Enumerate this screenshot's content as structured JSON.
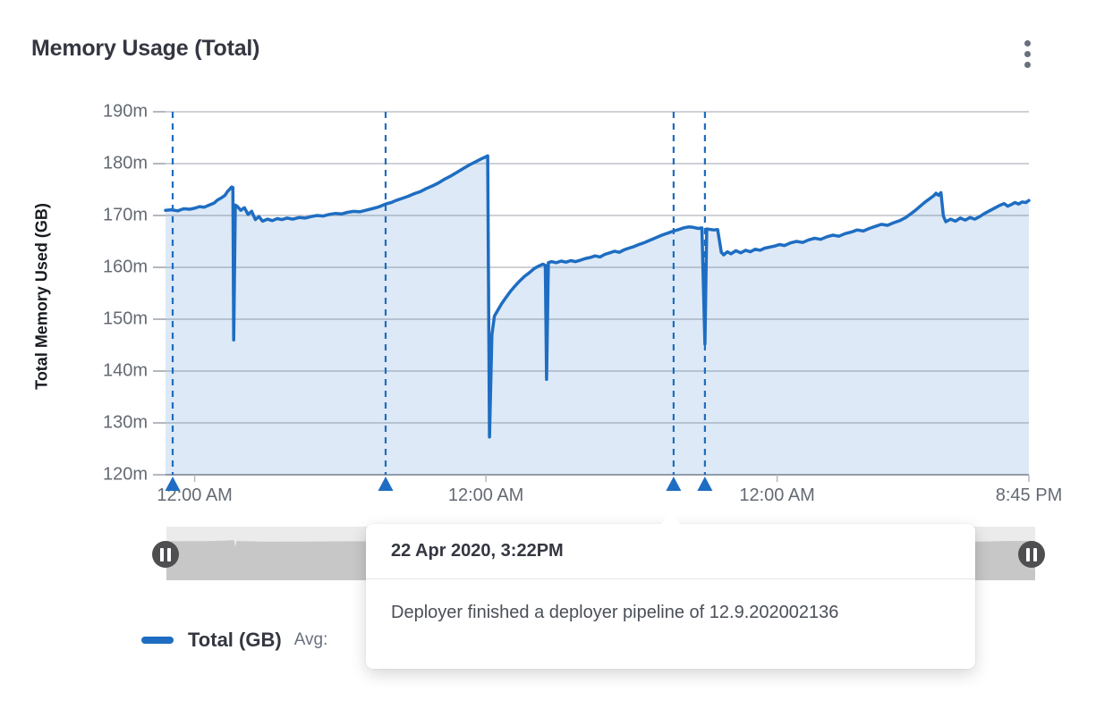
{
  "header": {
    "title": "Memory Usage (Total)",
    "menu_icon": "kebab-vertical-icon"
  },
  "chart_data": {
    "type": "area",
    "title": "Memory Usage (Total)",
    "xlabel": "",
    "ylabel": "Total Memory Used (GB)",
    "x_unit": "hours",
    "xlim": [
      0,
      71.15
    ],
    "ylim": [
      120,
      190
    ],
    "grid": "horizontal",
    "legend_position": "bottom-left",
    "line_color": "#1e6dc2",
    "fill_color": "rgba(30,109,194,0.15)",
    "annotation_color": "#1e6dc2",
    "y_ticks": [
      {
        "value": 190,
        "label": "190m"
      },
      {
        "value": 180,
        "label": "180m"
      },
      {
        "value": 170,
        "label": "170m"
      },
      {
        "value": 160,
        "label": "160m"
      },
      {
        "value": 150,
        "label": "150m"
      },
      {
        "value": 140,
        "label": "140m"
      },
      {
        "value": 130,
        "label": "130m"
      },
      {
        "value": 120,
        "label": "120m"
      }
    ],
    "x_ticks": [
      {
        "t": 2.4,
        "label": "12:00 AM"
      },
      {
        "t": 26.4,
        "label": "12:00 AM"
      },
      {
        "t": 50.4,
        "label": "12:00 AM"
      },
      {
        "t": 71.15,
        "label": "8:45 PM"
      }
    ],
    "annotations": [
      {
        "t": 0.59
      },
      {
        "t": 18.14
      },
      {
        "t": 41.87,
        "selected": true,
        "timestamp": "22 Apr 2020, 3:22PM",
        "message": "Deployer finished a deployer pipeline of 12.9.202002136"
      },
      {
        "t": 44.45
      }
    ],
    "series": [
      {
        "name": "Total (GB)",
        "points": [
          [
            0,
            171.0
          ],
          [
            0.5,
            171.1
          ],
          [
            1,
            170.9
          ],
          [
            1.5,
            171.3
          ],
          [
            2,
            171.2
          ],
          [
            2.4,
            171.4
          ],
          [
            2.8,
            171.7
          ],
          [
            3.2,
            171.6
          ],
          [
            3.6,
            172.0
          ],
          [
            4,
            172.4
          ],
          [
            4.3,
            173.0
          ],
          [
            4.6,
            173.4
          ],
          [
            4.9,
            173.9
          ],
          [
            5.1,
            174.6
          ],
          [
            5.3,
            175.1
          ],
          [
            5.45,
            175.5
          ],
          [
            5.55,
            175.4
          ],
          [
            5.62,
            146.0
          ],
          [
            5.75,
            172.0
          ],
          [
            5.9,
            171.8
          ],
          [
            6.2,
            171.0
          ],
          [
            6.5,
            171.5
          ],
          [
            6.8,
            170.2
          ],
          [
            7.1,
            170.8
          ],
          [
            7.4,
            169.2
          ],
          [
            7.7,
            169.8
          ],
          [
            8,
            168.9
          ],
          [
            8.4,
            169.3
          ],
          [
            8.8,
            169.0
          ],
          [
            9.2,
            169.4
          ],
          [
            9.6,
            169.2
          ],
          [
            10,
            169.5
          ],
          [
            10.5,
            169.3
          ],
          [
            11,
            169.6
          ],
          [
            11.5,
            169.5
          ],
          [
            12,
            169.8
          ],
          [
            12.5,
            170.0
          ],
          [
            13,
            169.9
          ],
          [
            13.5,
            170.2
          ],
          [
            14,
            170.4
          ],
          [
            14.5,
            170.3
          ],
          [
            15,
            170.6
          ],
          [
            15.5,
            170.8
          ],
          [
            16,
            170.7
          ],
          [
            16.5,
            171.0
          ],
          [
            17,
            171.3
          ],
          [
            17.5,
            171.6
          ],
          [
            18.14,
            172.2
          ],
          [
            18.6,
            172.5
          ],
          [
            19,
            172.9
          ],
          [
            19.5,
            173.3
          ],
          [
            20,
            173.7
          ],
          [
            20.5,
            174.2
          ],
          [
            21,
            174.6
          ],
          [
            21.5,
            175.2
          ],
          [
            22,
            175.7
          ],
          [
            22.5,
            176.3
          ],
          [
            23,
            177.0
          ],
          [
            23.5,
            177.6
          ],
          [
            24,
            178.3
          ],
          [
            24.5,
            179.0
          ],
          [
            25,
            179.7
          ],
          [
            25.5,
            180.3
          ],
          [
            26,
            180.9
          ],
          [
            26.3,
            181.2
          ],
          [
            26.55,
            181.5
          ],
          [
            26.7,
            127.3
          ],
          [
            26.9,
            147.0
          ],
          [
            27.1,
            150.6
          ],
          [
            27.4,
            151.8
          ],
          [
            27.7,
            153.0
          ],
          [
            28,
            154.0
          ],
          [
            28.4,
            155.3
          ],
          [
            28.8,
            156.4
          ],
          [
            29.2,
            157.4
          ],
          [
            29.6,
            158.3
          ],
          [
            30,
            159.0
          ],
          [
            30.4,
            159.8
          ],
          [
            30.8,
            160.3
          ],
          [
            31.1,
            160.6
          ],
          [
            31.3,
            160.4
          ],
          [
            31.4,
            138.4
          ],
          [
            31.55,
            160.9
          ],
          [
            31.8,
            161.1
          ],
          [
            32.2,
            160.9
          ],
          [
            32.6,
            161.2
          ],
          [
            33,
            161.0
          ],
          [
            33.4,
            161.3
          ],
          [
            33.8,
            161.1
          ],
          [
            34.2,
            161.4
          ],
          [
            34.6,
            161.7
          ],
          [
            35,
            161.9
          ],
          [
            35.4,
            162.2
          ],
          [
            35.8,
            162.0
          ],
          [
            36.2,
            162.5
          ],
          [
            36.6,
            162.8
          ],
          [
            37,
            163.1
          ],
          [
            37.4,
            162.9
          ],
          [
            37.8,
            163.4
          ],
          [
            38.2,
            163.7
          ],
          [
            38.6,
            164.0
          ],
          [
            39,
            164.4
          ],
          [
            39.4,
            164.7
          ],
          [
            39.8,
            165.1
          ],
          [
            40.2,
            165.5
          ],
          [
            40.6,
            165.9
          ],
          [
            41,
            166.3
          ],
          [
            41.4,
            166.6
          ],
          [
            41.87,
            167.0
          ],
          [
            42.3,
            167.3
          ],
          [
            42.7,
            167.6
          ],
          [
            43.1,
            167.8
          ],
          [
            43.5,
            167.7
          ],
          [
            43.9,
            167.5
          ],
          [
            44.2,
            167.6
          ],
          [
            44.45,
            145.2
          ],
          [
            44.6,
            167.4
          ],
          [
            44.9,
            167.3
          ],
          [
            45.2,
            167.2
          ],
          [
            45.5,
            167.3
          ],
          [
            45.8,
            162.9
          ],
          [
            46,
            162.4
          ],
          [
            46.3,
            163.0
          ],
          [
            46.6,
            162.6
          ],
          [
            47,
            163.2
          ],
          [
            47.4,
            162.8
          ],
          [
            47.8,
            163.3
          ],
          [
            48.2,
            163.0
          ],
          [
            48.6,
            163.5
          ],
          [
            49,
            163.3
          ],
          [
            49.4,
            163.7
          ],
          [
            49.8,
            163.9
          ],
          [
            50.2,
            164.1
          ],
          [
            50.6,
            164.4
          ],
          [
            51,
            164.2
          ],
          [
            51.5,
            164.7
          ],
          [
            52,
            165.0
          ],
          [
            52.5,
            164.8
          ],
          [
            53,
            165.3
          ],
          [
            53.5,
            165.6
          ],
          [
            54,
            165.4
          ],
          [
            54.5,
            165.9
          ],
          [
            55,
            166.2
          ],
          [
            55.5,
            166.0
          ],
          [
            56,
            166.5
          ],
          [
            56.5,
            166.8
          ],
          [
            57,
            167.2
          ],
          [
            57.5,
            167.0
          ],
          [
            58,
            167.5
          ],
          [
            58.5,
            167.9
          ],
          [
            59,
            168.3
          ],
          [
            59.5,
            168.1
          ],
          [
            60,
            168.6
          ],
          [
            60.5,
            169.0
          ],
          [
            61,
            169.6
          ],
          [
            61.4,
            170.3
          ],
          [
            61.8,
            171.0
          ],
          [
            62.2,
            171.8
          ],
          [
            62.6,
            172.6
          ],
          [
            63,
            173.3
          ],
          [
            63.3,
            173.8
          ],
          [
            63.5,
            174.3
          ],
          [
            63.7,
            173.9
          ],
          [
            63.9,
            174.4
          ],
          [
            64.1,
            169.9
          ],
          [
            64.3,
            168.8
          ],
          [
            64.7,
            169.3
          ],
          [
            65.1,
            168.9
          ],
          [
            65.5,
            169.5
          ],
          [
            65.9,
            169.1
          ],
          [
            66.3,
            169.6
          ],
          [
            66.7,
            169.3
          ],
          [
            67.1,
            169.8
          ],
          [
            67.5,
            170.4
          ],
          [
            67.9,
            170.9
          ],
          [
            68.3,
            171.4
          ],
          [
            68.7,
            171.9
          ],
          [
            69.1,
            172.3
          ],
          [
            69.4,
            171.8
          ],
          [
            69.7,
            172.1
          ],
          [
            70,
            172.5
          ],
          [
            70.3,
            172.2
          ],
          [
            70.6,
            172.6
          ],
          [
            70.9,
            172.5
          ],
          [
            71.15,
            172.9
          ]
        ]
      }
    ]
  },
  "tooltip": {
    "timestamp": "22 Apr 2020, 3:22PM",
    "message": "Deployer finished a deployer pipeline of 12.9.202002136"
  },
  "legend": {
    "series_label": "Total (GB)",
    "avg_label": "Avg:"
  },
  "brush": {
    "left_handle_icon": "pause-icon",
    "right_handle_icon": "pause-icon",
    "track_color": "#ebebeb",
    "silhouette_color": "#c7c7c7"
  }
}
